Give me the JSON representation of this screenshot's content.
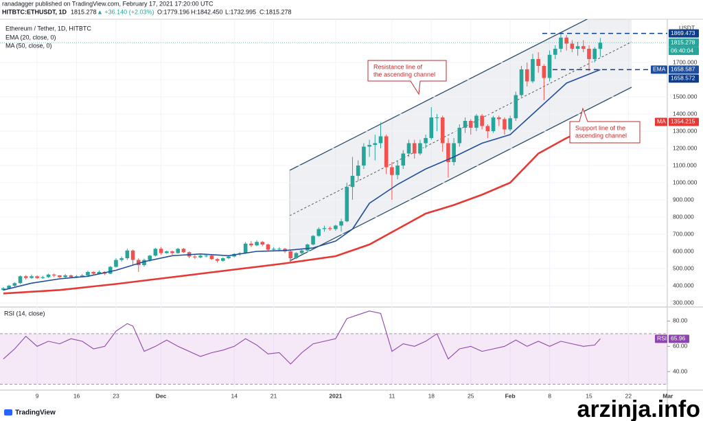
{
  "header": {
    "publisher": "ranadagger published on TradingView.com, February 17, 2021 17:20:00 UTC",
    "symbol": "HITBTC:ETHUSDT, 1D",
    "last": "1815.278",
    "change": "▲ +36.140 (+2.03%)",
    "open": "O:1779.196",
    "high": "H:1842.450",
    "low": "L:1732.995",
    "close": "C:1815.278",
    "brand": "TradingView",
    "watermark": "arzinja.info"
  },
  "chart_data": [
    {
      "type": "candlestick",
      "title": "Ethereum / Tether, 1D, HITBTC",
      "axis_unit": "USDT",
      "up_color": "#26a69a",
      "down_color": "#ef5350",
      "x": [
        0,
        1,
        2,
        3,
        4,
        5,
        6,
        7,
        8,
        9,
        10,
        11,
        12,
        13,
        14,
        15,
        16,
        17,
        18,
        19,
        20,
        21,
        22,
        23,
        24,
        25,
        26,
        27,
        28,
        29,
        30,
        31,
        32,
        33,
        34,
        35,
        36,
        37,
        38,
        39,
        40,
        41,
        42,
        43,
        44,
        45,
        46,
        47,
        48,
        49,
        50,
        51,
        52,
        53,
        54,
        55,
        56,
        57,
        58,
        59,
        60,
        61,
        62,
        63,
        64,
        65,
        66,
        67,
        68,
        69,
        70,
        71,
        72,
        73,
        74,
        75,
        76,
        77,
        78,
        79,
        80,
        81,
        82,
        83,
        84,
        85,
        86,
        87,
        88,
        89,
        90,
        91,
        92,
        93,
        94,
        95,
        96,
        97,
        98,
        99,
        100,
        101,
        102,
        103,
        104,
        105,
        106
      ],
      "candles": [
        [
          375,
          392,
          370,
          385
        ],
        [
          385,
          405,
          380,
          400
        ],
        [
          400,
          420,
          395,
          415
        ],
        [
          415,
          460,
          410,
          455
        ],
        [
          455,
          462,
          435,
          445
        ],
        [
          445,
          465,
          440,
          455
        ],
        [
          455,
          460,
          440,
          445
        ],
        [
          445,
          458,
          440,
          450
        ],
        [
          450,
          470,
          445,
          465
        ],
        [
          465,
          470,
          450,
          460
        ],
        [
          460,
          462,
          445,
          450
        ],
        [
          450,
          468,
          445,
          460
        ],
        [
          460,
          465,
          445,
          450
        ],
        [
          450,
          462,
          445,
          455
        ],
        [
          455,
          468,
          450,
          460
        ],
        [
          460,
          488,
          455,
          480
        ],
        [
          480,
          485,
          462,
          470
        ],
        [
          470,
          490,
          465,
          480
        ],
        [
          480,
          485,
          462,
          470
        ],
        [
          470,
          515,
          468,
          510
        ],
        [
          510,
          560,
          505,
          550
        ],
        [
          550,
          570,
          540,
          560
        ],
        [
          560,
          615,
          550,
          605
        ],
        [
          605,
          610,
          520,
          550
        ],
        [
          550,
          560,
          480,
          520
        ],
        [
          520,
          558,
          510,
          550
        ],
        [
          550,
          580,
          540,
          575
        ],
        [
          575,
          620,
          570,
          615
        ],
        [
          615,
          625,
          580,
          590
        ],
        [
          590,
          605,
          585,
          600
        ],
        [
          600,
          605,
          580,
          590
        ],
        [
          590,
          620,
          585,
          615
        ],
        [
          615,
          620,
          590,
          595
        ],
        [
          595,
          600,
          560,
          570
        ],
        [
          570,
          580,
          555,
          565
        ],
        [
          565,
          580,
          560,
          575
        ],
        [
          575,
          585,
          565,
          575
        ],
        [
          575,
          580,
          550,
          555
        ],
        [
          555,
          560,
          535,
          545
        ],
        [
          545,
          565,
          540,
          560
        ],
        [
          560,
          575,
          555,
          570
        ],
        [
          570,
          590,
          565,
          585
        ],
        [
          585,
          595,
          575,
          590
        ],
        [
          590,
          655,
          585,
          645
        ],
        [
          645,
          660,
          625,
          635
        ],
        [
          635,
          665,
          630,
          655
        ],
        [
          655,
          660,
          630,
          640
        ],
        [
          640,
          645,
          600,
          610
        ],
        [
          610,
          625,
          605,
          615
        ],
        [
          615,
          625,
          600,
          615
        ],
        [
          615,
          620,
          590,
          600
        ],
        [
          600,
          605,
          540,
          560
        ],
        [
          560,
          595,
          555,
          590
        ],
        [
          590,
          610,
          580,
          605
        ],
        [
          605,
          645,
          600,
          640
        ],
        [
          640,
          695,
          635,
          690
        ],
        [
          690,
          740,
          685,
          730
        ],
        [
          730,
          750,
          715,
          735
        ],
        [
          735,
          745,
          720,
          730
        ],
        [
          730,
          755,
          720,
          750
        ],
        [
          750,
          790,
          715,
          775
        ],
        [
          775,
          1000,
          770,
          975
        ],
        [
          975,
          1150,
          900,
          1040
        ],
        [
          1040,
          1130,
          1010,
          1100
        ],
        [
          1100,
          1230,
          1080,
          1210
        ],
        [
          1210,
          1250,
          1150,
          1220
        ],
        [
          1220,
          1280,
          1130,
          1230
        ],
        [
          1230,
          1350,
          1200,
          1270
        ],
        [
          1270,
          1280,
          1050,
          1090
        ],
        [
          1090,
          1120,
          900,
          1045
        ],
        [
          1045,
          1130,
          1020,
          1100
        ],
        [
          1100,
          1190,
          1080,
          1170
        ],
        [
          1170,
          1250,
          1150,
          1230
        ],
        [
          1230,
          1250,
          1140,
          1170
        ],
        [
          1170,
          1250,
          1160,
          1230
        ],
        [
          1230,
          1280,
          1200,
          1260
        ],
        [
          1260,
          1440,
          1250,
          1380
        ],
        [
          1380,
          1400,
          1300,
          1380
        ],
        [
          1380,
          1390,
          1180,
          1230
        ],
        [
          1230,
          1260,
          1030,
          1120
        ],
        [
          1120,
          1260,
          1100,
          1230
        ],
        [
          1230,
          1340,
          1210,
          1320
        ],
        [
          1320,
          1380,
          1290,
          1360
        ],
        [
          1360,
          1370,
          1280,
          1320
        ],
        [
          1320,
          1400,
          1300,
          1390
        ],
        [
          1390,
          1400,
          1310,
          1330
        ],
        [
          1330,
          1340,
          1260,
          1300
        ],
        [
          1300,
          1390,
          1290,
          1380
        ],
        [
          1380,
          1390,
          1330,
          1370
        ],
        [
          1370,
          1380,
          1280,
          1310
        ],
        [
          1310,
          1390,
          1300,
          1375
        ],
        [
          1375,
          1530,
          1360,
          1510
        ],
        [
          1510,
          1680,
          1500,
          1660
        ],
        [
          1660,
          1700,
          1560,
          1590
        ],
        [
          1590,
          1750,
          1580,
          1720
        ],
        [
          1720,
          1760,
          1640,
          1680
        ],
        [
          1680,
          1690,
          1480,
          1610
        ],
        [
          1610,
          1770,
          1590,
          1745
        ],
        [
          1745,
          1800,
          1720,
          1780
        ],
        [
          1780,
          1870,
          1760,
          1845
        ],
        [
          1845,
          1860,
          1770,
          1810
        ],
        [
          1810,
          1830,
          1760,
          1780
        ],
        [
          1780,
          1820,
          1740,
          1795
        ],
        [
          1795,
          1830,
          1760,
          1780
        ],
        [
          1780,
          1800,
          1650,
          1720
        ],
        [
          1720,
          1790,
          1700,
          1780
        ],
        [
          1779.196,
          1842.45,
          1732.995,
          1815.278
        ]
      ],
      "lines": [
        {
          "name": "EMA (20, close, 0)",
          "label": "EMA",
          "color": "#1f4e9c",
          "last_value": 1658.587,
          "x": [
            0,
            5,
            10,
            15,
            20,
            25,
            30,
            35,
            40,
            45,
            50,
            55,
            59,
            62,
            65,
            70,
            75,
            80,
            85,
            90,
            95,
            100,
            106
          ],
          "values": [
            375,
            415,
            440,
            455,
            490,
            540,
            575,
            585,
            575,
            600,
            605,
            620,
            660,
            730,
            880,
            990,
            1080,
            1150,
            1230,
            1280,
            1430,
            1580,
            1658.587
          ]
        },
        {
          "name": "MA (50, close, 0)",
          "label": "MA",
          "color": "#e53935",
          "last_value": 1354.215,
          "x": [
            0,
            10,
            20,
            30,
            40,
            50,
            59,
            65,
            70,
            75,
            80,
            85,
            90,
            95,
            100,
            106
          ],
          "values": [
            355,
            375,
            410,
            450,
            490,
            530,
            572,
            640,
            730,
            820,
            870,
            930,
            1000,
            1170,
            1260,
            1354.215
          ]
        }
      ],
      "levels": [
        {
          "value": 1869.473,
          "color": "#0d3c8c"
        },
        {
          "value": 1658.572,
          "color": "#0d3c8c"
        }
      ],
      "last_price": 1815.278,
      "countdown": "06:40:04",
      "annotations": [
        "Resistance line of",
        "the ascending channel",
        "Support line of the",
        "ascending channel"
      ],
      "xlim": [
        -0.6,
        117.9
      ],
      "ylim": [
        284,
        1952
      ],
      "grid": true,
      "xticks": [
        {
          "value": 6,
          "label": "9"
        },
        {
          "value": 13,
          "label": "16"
        },
        {
          "value": 20,
          "label": "23"
        },
        {
          "value": 28,
          "label": "Dec"
        },
        {
          "value": 41,
          "label": "14"
        },
        {
          "value": 48,
          "label": "21"
        },
        {
          "value": 59,
          "label": "2021"
        },
        {
          "value": 69,
          "label": "11"
        },
        {
          "value": 76,
          "label": "18"
        },
        {
          "value": 83,
          "label": "25"
        },
        {
          "value": 90,
          "label": "Feb"
        },
        {
          "value": 97,
          "label": "8"
        },
        {
          "value": 104,
          "label": "15"
        },
        {
          "value": 111,
          "label": "22"
        },
        {
          "value": 118,
          "label": "Mar"
        }
      ],
      "yticks": [
        {
          "value": 300,
          "label": "300.000"
        },
        {
          "value": 400,
          "label": "400.000"
        },
        {
          "value": 500,
          "label": "500.000"
        },
        {
          "value": 600,
          "label": "600.000"
        },
        {
          "value": 700,
          "label": "700.000"
        },
        {
          "value": 800,
          "label": "800.000"
        },
        {
          "value": 900,
          "label": "900.000"
        },
        {
          "value": 1000,
          "label": "1000.000"
        },
        {
          "value": 1100,
          "label": "1100.000"
        },
        {
          "value": 1200,
          "label": "1200.000"
        },
        {
          "value": 1300,
          "label": "1300.000"
        },
        {
          "value": 1400,
          "label": "1400.000"
        },
        {
          "value": 1500,
          "label": "1500.000"
        },
        {
          "value": 1600,
          "label": "1600.000"
        },
        {
          "value": 1700,
          "label": "1700.000"
        }
      ]
    },
    {
      "type": "line",
      "title": "RSI (14, close)",
      "label": "RSI",
      "color": "#8e44ad",
      "band": [
        30,
        70
      ],
      "x": [
        0,
        2,
        4,
        6,
        8,
        10,
        12,
        14,
        16,
        18,
        20,
        22,
        23,
        25,
        27,
        29,
        31,
        33,
        35,
        37,
        39,
        41,
        43,
        45,
        47,
        49,
        51,
        53,
        55,
        57,
        59,
        61,
        63,
        65,
        67,
        69,
        71,
        73,
        75,
        77,
        79,
        81,
        83,
        85,
        87,
        89,
        91,
        93,
        95,
        97,
        99,
        101,
        103,
        105,
        106
      ],
      "values": [
        50,
        58,
        68,
        60,
        64,
        62,
        66,
        64,
        58,
        60,
        72,
        78,
        76,
        56,
        60,
        65,
        60,
        56,
        52,
        55,
        57,
        60,
        66,
        61,
        54,
        55,
        46,
        55,
        62,
        64,
        66,
        82,
        85,
        88,
        86,
        56,
        62,
        60,
        64,
        70,
        50,
        58,
        60,
        56,
        58,
        60,
        65,
        60,
        64,
        60,
        64,
        62,
        60,
        61,
        65.96
      ],
      "xlim": [
        -0.6,
        117.9
      ],
      "ylim": [
        27,
        89.5
      ],
      "yticks": [
        {
          "value": 80,
          "label": "80.00"
        },
        {
          "value": 60,
          "label": "60.00"
        },
        {
          "value": 40,
          "label": "40.00"
        }
      ]
    }
  ]
}
